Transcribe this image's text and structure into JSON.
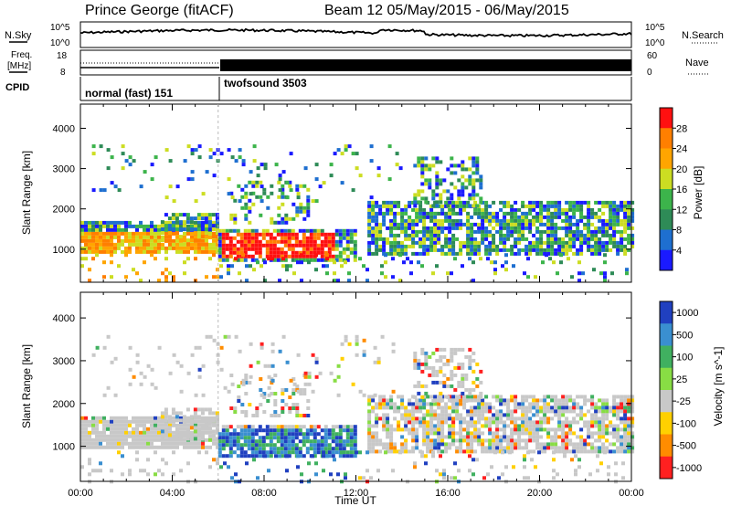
{
  "header": {
    "station": "Prince George (fitACF)",
    "beam_info": "Beam 12 05/May/2015 - 06/May/2015"
  },
  "noise_panel": {
    "left_label": "N.Sky",
    "right_label": "N.Search",
    "left_ticks": [
      "10^5",
      "10^0"
    ],
    "right_ticks": [
      "10^5",
      "10^0"
    ]
  },
  "freq_panel": {
    "left_label_1": "Freq.",
    "left_label_2": "[MHz]",
    "right_label": "Nave",
    "left_ticks": [
      "18",
      "8"
    ],
    "right_ticks": [
      "60",
      "0"
    ]
  },
  "cpid_panel": {
    "label": "CPID",
    "segments": [
      {
        "name": "normal (fast) 151",
        "start_hour": 0,
        "end_hour": 6
      },
      {
        "name": "twofsound 3503",
        "start_hour": 6,
        "end_hour": 24
      }
    ]
  },
  "chart_data": [
    {
      "type": "heatmap",
      "title": "",
      "quantity": "Power",
      "xlabel": "",
      "ylabel": "Slant Range [km]",
      "xlim": [
        0,
        24
      ],
      "ylim": [
        180,
        4600
      ],
      "y_ticks": [
        "1000",
        "2000",
        "3000",
        "4000"
      ],
      "colorbar": {
        "label": "Power [dB]",
        "ticks": [
          "4",
          "8",
          "12",
          "16",
          "20",
          "24",
          "28"
        ],
        "range": [
          0,
          30
        ],
        "colors": [
          "#1a1aff",
          "#1e6fd0",
          "#2e8b57",
          "#3cb44b",
          "#ccdd22",
          "#ffa500",
          "#ff7f00",
          "#ff1010"
        ]
      },
      "regions": [
        {
          "x": [
            0,
            6
          ],
          "y": [
            900,
            1700
          ],
          "level": "medium-high"
        },
        {
          "x": [
            6,
            12
          ],
          "y": [
            800,
            1400
          ],
          "level": "high"
        },
        {
          "x": [
            12,
            24
          ],
          "y": [
            800,
            2200
          ],
          "level": "medium"
        },
        {
          "x": [
            14,
            18
          ],
          "y": [
            2000,
            3300
          ],
          "level": "low"
        }
      ]
    },
    {
      "type": "heatmap",
      "title": "",
      "quantity": "Velocity",
      "xlabel": "Time UT",
      "ylabel": "Slant Range [km]",
      "xlim": [
        0,
        24
      ],
      "ylim": [
        180,
        4600
      ],
      "x_ticks": [
        "00:00",
        "04:00",
        "08:00",
        "12:00",
        "16:00",
        "20:00",
        "00:00"
      ],
      "y_ticks": [
        "1000",
        "2000",
        "3000",
        "4000"
      ],
      "colorbar": {
        "label": "Velocity [m s^-1]",
        "ticks": [
          "1000",
          "500",
          "100",
          "25",
          "-25",
          "-100",
          "-500",
          "-1000"
        ],
        "colors": [
          "#2040c0",
          "#3a8fd0",
          "#40b060",
          "#88dd44",
          "#c8c8c8",
          "#ffd000",
          "#ff8c00",
          "#ff2020"
        ]
      },
      "regions": [
        {
          "x": [
            0,
            6
          ],
          "y": [
            1000,
            1600
          ],
          "velocity": "~0 (ground scatter)"
        },
        {
          "x": [
            6,
            12
          ],
          "y": [
            800,
            1500
          ],
          "velocity": "positive (toward)"
        },
        {
          "x": [
            12,
            24
          ],
          "y": [
            800,
            2200
          ],
          "velocity": "mixed, mostly ~0"
        }
      ]
    }
  ]
}
